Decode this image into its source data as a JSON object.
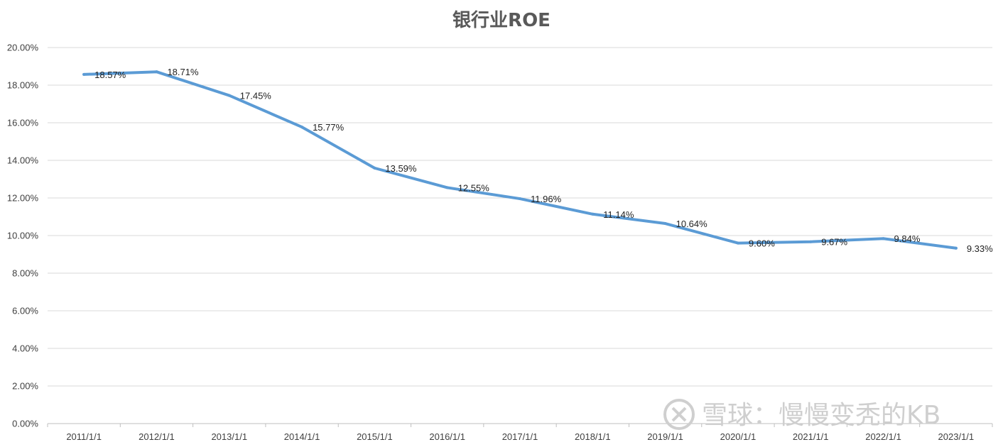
{
  "colors": {
    "line": "#5B9BD5",
    "grid": "#D9D9D9",
    "axis": "#BFBFBF",
    "text": "#404040",
    "title": "#595959",
    "watermark": "#CFCFCF"
  },
  "watermark": {
    "text": "雪球：慢慢变秃的KB",
    "icon": "snowball-logo-icon"
  },
  "chart_data": {
    "type": "line",
    "title": "银行业ROE",
    "xlabel": "",
    "ylabel": "",
    "ylim": [
      0,
      20
    ],
    "yticks": [
      0,
      2,
      4,
      6,
      8,
      10,
      12,
      14,
      16,
      18,
      20
    ],
    "ytick_labels": [
      "0.00%",
      "2.00%",
      "4.00%",
      "6.00%",
      "8.00%",
      "10.00%",
      "12.00%",
      "14.00%",
      "16.00%",
      "18.00%",
      "20.00%"
    ],
    "grid": true,
    "legend": "none",
    "categories": [
      "2011/1/1",
      "2012/1/1",
      "2013/1/1",
      "2014/1/1",
      "2015/1/1",
      "2016/1/1",
      "2017/1/1",
      "2018/1/1",
      "2019/1/1",
      "2020/1/1",
      "2021/1/1",
      "2022/1/1",
      "2023/1/1"
    ],
    "series": [
      {
        "values": [
          18.57,
          18.71,
          17.45,
          15.77,
          13.59,
          12.55,
          11.96,
          11.14,
          10.64,
          9.6,
          9.67,
          9.84,
          9.33
        ],
        "labels": [
          "18.57%",
          "18.71%",
          "17.45%",
          "15.77%",
          "13.59%",
          "12.55%",
          "11.96%",
          "11.14%",
          "10.64%",
          "9.60%",
          "9.67%",
          "9.84%",
          "9.33%"
        ]
      }
    ]
  }
}
